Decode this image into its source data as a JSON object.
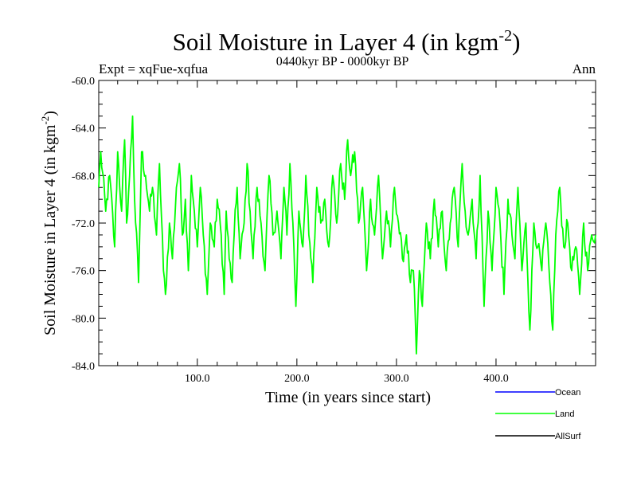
{
  "chart_data": {
    "type": "line",
    "title": "Soil Moisture in Layer 4 (in kgm",
    "title_superscript": "-2",
    "title_suffix": ")",
    "subtitle": "0440kyr BP - 0000kyr BP",
    "left_label": "Expt = xqFue-xqfua",
    "right_label": "Ann",
    "xlabel": "Time (in years since start)",
    "ylabel": "Soil Moisture in Layer 4 (in kgm",
    "ylabel_superscript": "-2",
    "ylabel_suffix": ")",
    "xlim": [
      1,
      500
    ],
    "ylim": [
      -84,
      -60
    ],
    "x_ticks": [
      100,
      200,
      300,
      400
    ],
    "x_tick_labels": [
      "100.0",
      "200.0",
      "300.0",
      "400.0"
    ],
    "y_ticks": [
      -60,
      -64,
      -68,
      -72,
      -76,
      -80,
      -84
    ],
    "y_tick_labels": [
      "-60.0",
      "-64.0",
      "-68.0",
      "-72.0",
      "-76.0",
      "-80.0",
      "-84.0"
    ],
    "legend": [
      {
        "name": "Ocean",
        "color": "#0000ff"
      },
      {
        "name": "Land",
        "color": "#00ff00"
      },
      {
        "name": "AllSurf",
        "color": "#000000"
      }
    ],
    "series": [
      {
        "name": "Land",
        "color": "#00ff00",
        "anchors_x": [
          1,
          3,
          8,
          12,
          17,
          20,
          24,
          27,
          29,
          32,
          35,
          37,
          41,
          44,
          48,
          52,
          55,
          59,
          62,
          66,
          68,
          72,
          75,
          79,
          82,
          85,
          88,
          91,
          94,
          97,
          100,
          103,
          106,
          110,
          113,
          117,
          120,
          124,
          127,
          129,
          132,
          135,
          137,
          140,
          143,
          147,
          150,
          153,
          156,
          160,
          164,
          168,
          172,
          176,
          180,
          184,
          187,
          190,
          193,
          196,
          199,
          202,
          206,
          209,
          212,
          216,
          220,
          224,
          228,
          232,
          236,
          240,
          244,
          248,
          251,
          254,
          258,
          262,
          266,
          270,
          274,
          278,
          282,
          286,
          290,
          294,
          298,
          302,
          306,
          310,
          314,
          317,
          320,
          323,
          326,
          330,
          334,
          338,
          342,
          346,
          350,
          354,
          358,
          362,
          366,
          369,
          372,
          376,
          380,
          384,
          388,
          392,
          396,
          400,
          404,
          408,
          412,
          416,
          419,
          422,
          426,
          430,
          434,
          438,
          442,
          446,
          450,
          454,
          457,
          460,
          464,
          468,
          472,
          476,
          480,
          484,
          488,
          492,
          496,
          500
        ],
        "anchors_y": [
          -69,
          -66,
          -71,
          -68,
          -74,
          -66,
          -71,
          -65,
          -72,
          -68,
          -63,
          -70,
          -77,
          -66,
          -68,
          -71,
          -69,
          -73,
          -67,
          -76,
          -78,
          -72,
          -75,
          -69,
          -67,
          -73,
          -70,
          -76,
          -68,
          -71,
          -74,
          -69,
          -73,
          -78,
          -72,
          -74,
          -70,
          -73,
          -78,
          -71,
          -75,
          -77,
          -73,
          -69,
          -75,
          -72,
          -67,
          -71,
          -75,
          -69,
          -72,
          -76,
          -68,
          -73,
          -71,
          -75,
          -69,
          -73,
          -67,
          -72,
          -79,
          -71,
          -74,
          -68,
          -73,
          -77,
          -69,
          -72,
          -70,
          -74,
          -68,
          -72,
          -67,
          -70,
          -65,
          -68,
          -66,
          -72,
          -69,
          -76,
          -70,
          -73,
          -68,
          -75,
          -71,
          -74,
          -69,
          -72,
          -75,
          -73,
          -77,
          -76,
          -83,
          -76,
          -79,
          -72,
          -75,
          -70,
          -74,
          -71,
          -76,
          -72,
          -69,
          -74,
          -67,
          -71,
          -73,
          -70,
          -75,
          -68,
          -79,
          -71,
          -76,
          -69,
          -72,
          -78,
          -70,
          -73,
          -75,
          -69,
          -76,
          -72,
          -81,
          -72,
          -74,
          -76,
          -72,
          -77,
          -81,
          -73,
          -69,
          -74,
          -72,
          -76,
          -74,
          -78,
          -72,
          -76,
          -73,
          -73
        ]
      }
    ]
  }
}
